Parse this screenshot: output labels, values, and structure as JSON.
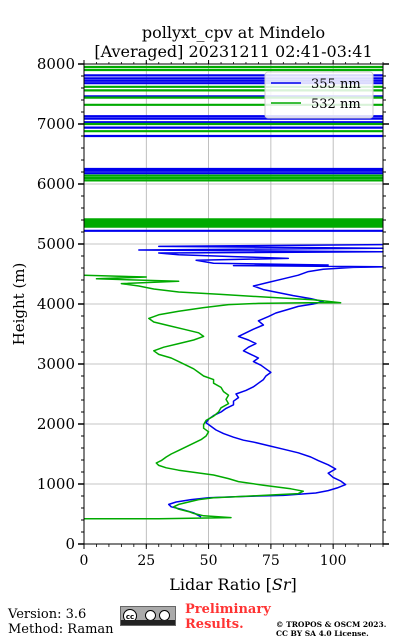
{
  "chart_data": {
    "type": "line",
    "title_line1": "pollyxt_cpv at Mindelo",
    "title_line2": "[Averaged] 20231211 02:41-03:41",
    "xlabel": "Lidar Ratio [Sr]",
    "ylabel": "Height (m)",
    "xlim": [
      0,
      120
    ],
    "ylim": [
      0,
      8000
    ],
    "xticks": [
      "0",
      "25",
      "50",
      "75",
      "100"
    ],
    "yticks": [
      "0",
      "1000",
      "2000",
      "3000",
      "4000",
      "5000",
      "6000",
      "7000",
      "8000"
    ],
    "grid": true,
    "legend_position": "top-right",
    "series": [
      {
        "name": "355 nm",
        "color": "#0000ee",
        "points": [
          [
            47,
            450
          ],
          [
            44,
            520
          ],
          [
            39,
            580
          ],
          [
            35,
            620
          ],
          [
            34,
            660
          ],
          [
            37,
            700
          ],
          [
            43,
            740
          ],
          [
            50,
            770
          ],
          [
            62,
            790
          ],
          [
            80,
            810
          ],
          [
            93,
            850
          ],
          [
            98,
            890
          ],
          [
            102,
            940
          ],
          [
            105,
            990
          ],
          [
            103,
            1050
          ],
          [
            100,
            1110
          ],
          [
            98,
            1180
          ],
          [
            101,
            1250
          ],
          [
            98,
            1320
          ],
          [
            94,
            1390
          ],
          [
            91,
            1450
          ],
          [
            86,
            1520
          ],
          [
            80,
            1580
          ],
          [
            74,
            1640
          ],
          [
            69,
            1690
          ],
          [
            64,
            1730
          ],
          [
            60,
            1780
          ],
          [
            56,
            1840
          ],
          [
            53,
            1900
          ],
          [
            51,
            1960
          ],
          [
            49,
            2020
          ],
          [
            50,
            2080
          ],
          [
            52,
            2140
          ],
          [
            55,
            2200
          ],
          [
            57,
            2260
          ],
          [
            60,
            2320
          ],
          [
            60,
            2380
          ],
          [
            62,
            2440
          ],
          [
            61,
            2500
          ],
          [
            65,
            2560
          ],
          [
            68,
            2620
          ],
          [
            70,
            2680
          ],
          [
            72,
            2740
          ],
          [
            73,
            2800
          ],
          [
            75,
            2860
          ],
          [
            73,
            2920
          ],
          [
            71,
            2980
          ],
          [
            68,
            3040
          ],
          [
            70,
            3100
          ],
          [
            67,
            3160
          ],
          [
            64,
            3220
          ],
          [
            66,
            3280
          ],
          [
            69,
            3340
          ],
          [
            66,
            3400
          ],
          [
            62,
            3460
          ],
          [
            65,
            3520
          ],
          [
            68,
            3580
          ],
          [
            72,
            3650
          ],
          [
            70,
            3720
          ],
          [
            74,
            3790
          ],
          [
            77,
            3850
          ],
          [
            82,
            3910
          ],
          [
            86,
            3960
          ],
          [
            92,
            4000
          ],
          [
            96,
            4040
          ],
          [
            91,
            4090
          ],
          [
            84,
            4140
          ],
          [
            78,
            4190
          ],
          [
            72,
            4240
          ],
          [
            68,
            4300
          ],
          [
            74,
            4360
          ],
          [
            80,
            4420
          ],
          [
            86,
            4480
          ],
          [
            90,
            4540
          ],
          [
            96,
            4580
          ],
          [
            108,
            4610
          ],
          [
            122,
            4620
          ],
          [
            60,
            4640
          ],
          [
            98,
            4650
          ],
          [
            52,
            4680
          ],
          [
            45,
            4730
          ],
          [
            82,
            4760
          ],
          [
            60,
            4790
          ],
          [
            38,
            4820
          ],
          [
            30,
            4850
          ],
          [
            120,
            4870
          ],
          [
            22,
            4900
          ],
          [
            120,
            4930
          ],
          [
            30,
            4960
          ],
          [
            120,
            4990
          ]
        ],
        "spikes": [
          5220,
          6180,
          6220,
          6250,
          6800,
          6940,
          7030,
          7090,
          7130,
          7460,
          7680,
          7720,
          7760,
          7810
        ]
      },
      {
        "name": "532 nm",
        "color": "#00aa00",
        "points": [
          [
            0,
            420
          ],
          [
            30,
            420
          ],
          [
            59,
            440
          ],
          [
            48,
            470
          ],
          [
            44,
            510
          ],
          [
            42,
            540
          ],
          [
            38,
            580
          ],
          [
            36,
            620
          ],
          [
            38,
            660
          ],
          [
            42,
            700
          ],
          [
            46,
            740
          ],
          [
            52,
            770
          ],
          [
            62,
            790
          ],
          [
            72,
            810
          ],
          [
            86,
            840
          ],
          [
            88,
            880
          ],
          [
            83,
            920
          ],
          [
            72,
            980
          ],
          [
            62,
            1040
          ],
          [
            58,
            1090
          ],
          [
            52,
            1150
          ],
          [
            45,
            1190
          ],
          [
            38,
            1230
          ],
          [
            33,
            1270
          ],
          [
            30,
            1310
          ],
          [
            29,
            1350
          ],
          [
            31,
            1390
          ],
          [
            33,
            1450
          ],
          [
            35,
            1500
          ],
          [
            38,
            1560
          ],
          [
            41,
            1620
          ],
          [
            44,
            1680
          ],
          [
            47,
            1740
          ],
          [
            49,
            1800
          ],
          [
            50,
            1870
          ],
          [
            48,
            1930
          ],
          [
            48,
            1990
          ],
          [
            49,
            2060
          ],
          [
            52,
            2130
          ],
          [
            54,
            2200
          ],
          [
            55,
            2270
          ],
          [
            58,
            2340
          ],
          [
            57,
            2410
          ],
          [
            58,
            2480
          ],
          [
            56,
            2540
          ],
          [
            55,
            2610
          ],
          [
            52,
            2680
          ],
          [
            52,
            2740
          ],
          [
            48,
            2800
          ],
          [
            46,
            2860
          ],
          [
            44,
            2920
          ],
          [
            41,
            2980
          ],
          [
            38,
            3040
          ],
          [
            35,
            3100
          ],
          [
            30,
            3160
          ],
          [
            28,
            3220
          ],
          [
            32,
            3280
          ],
          [
            38,
            3340
          ],
          [
            44,
            3400
          ],
          [
            48,
            3460
          ],
          [
            46,
            3520
          ],
          [
            40,
            3580
          ],
          [
            34,
            3640
          ],
          [
            28,
            3700
          ],
          [
            26,
            3760
          ],
          [
            30,
            3820
          ],
          [
            38,
            3880
          ],
          [
            48,
            3940
          ],
          [
            58,
            3990
          ],
          [
            70,
            4010
          ],
          [
            90,
            4020
          ],
          [
            103,
            4020
          ],
          [
            92,
            4070
          ],
          [
            75,
            4110
          ],
          [
            55,
            4160
          ],
          [
            38,
            4200
          ],
          [
            28,
            4250
          ],
          [
            22,
            4300
          ],
          [
            15,
            4340
          ],
          [
            38,
            4380
          ],
          [
            5,
            4420
          ],
          [
            25,
            4450
          ],
          [
            0,
            4480
          ]
        ],
        "spikes": [
          5290,
          5320,
          5350,
          5380,
          5410,
          6060,
          6100,
          6140,
          6880,
          7000,
          7320,
          7440,
          7560,
          7620,
          7900,
          7950
        ]
      }
    ],
    "footer": {
      "version": "Version: 3.6",
      "method": "Method: Raman",
      "preliminary_line1": "Preliminary",
      "preliminary_line2": "Results.",
      "copyright_line1": "© TROPOS & OSCM 2023.",
      "copyright_line2": "CC BY SA 4.0 License."
    }
  }
}
